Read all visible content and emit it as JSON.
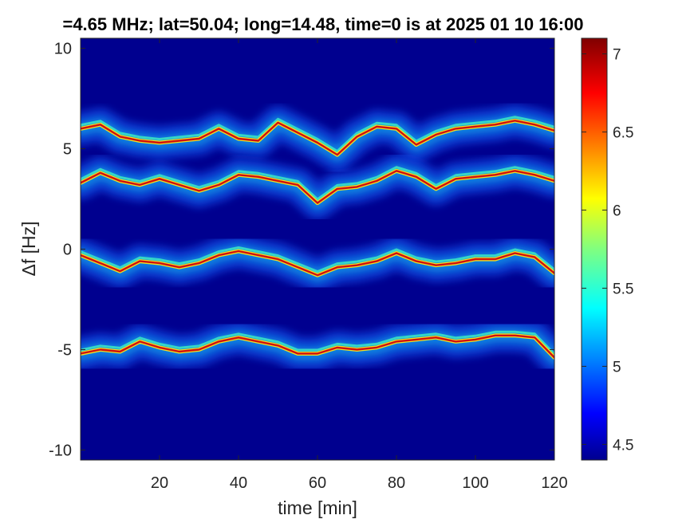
{
  "chart_data": {
    "type": "heatmap",
    "title": "=4.65 MHz;  lat=50.04; long=14.48, time=0 is at 2025 01 10 16:00",
    "xlabel": "time [min]",
    "ylabel": "Δf [Hz]",
    "xlim": [
      0,
      120
    ],
    "ylim": [
      -10.5,
      10.5
    ],
    "xticks": [
      20,
      40,
      60,
      80,
      100,
      120
    ],
    "xtick_labels": [
      "20",
      "40",
      "60",
      "80",
      "100",
      "120"
    ],
    "yticks": [
      10,
      5,
      0,
      -5,
      -10
    ],
    "ytick_labels": [
      "10",
      "5",
      "0",
      "-5",
      "-10"
    ],
    "colorbar": {
      "colormap": "jet",
      "range": [
        4.4,
        7.1
      ],
      "ticks": [
        7,
        6.5,
        6,
        5.5,
        5,
        4.5
      ],
      "tick_labels": [
        "7",
        "6.5",
        "6",
        "5.5",
        "5",
        "4.5"
      ]
    },
    "background_color": "#00008f",
    "traces": [
      {
        "name": "",
        "time": [
          0,
          5,
          10,
          15,
          20,
          25,
          30,
          35,
          40,
          45,
          50,
          55,
          60,
          65,
          70,
          75,
          80,
          85,
          90,
          95,
          100,
          105,
          110,
          115,
          120
        ],
        "df": [
          6.0,
          6.2,
          5.6,
          5.4,
          5.3,
          5.4,
          5.5,
          6.0,
          5.5,
          5.4,
          6.3,
          5.8,
          5.3,
          4.7,
          5.6,
          6.1,
          6.0,
          5.2,
          5.7,
          6.0,
          6.1,
          6.2,
          6.4,
          6.2,
          5.9
        ]
      },
      {
        "name": "",
        "time": [
          0,
          5,
          10,
          15,
          20,
          25,
          30,
          35,
          40,
          45,
          50,
          55,
          60,
          65,
          70,
          75,
          80,
          85,
          90,
          95,
          100,
          105,
          110,
          115,
          120
        ],
        "df": [
          3.3,
          3.8,
          3.4,
          3.2,
          3.5,
          3.2,
          2.9,
          3.2,
          3.7,
          3.6,
          3.4,
          3.2,
          2.3,
          3.0,
          3.1,
          3.4,
          3.9,
          3.6,
          3.0,
          3.5,
          3.6,
          3.7,
          3.9,
          3.7,
          3.4
        ]
      },
      {
        "name": "",
        "time": [
          0,
          5,
          10,
          15,
          20,
          25,
          30,
          35,
          40,
          45,
          50,
          55,
          60,
          65,
          70,
          75,
          80,
          85,
          90,
          95,
          100,
          105,
          110,
          115,
          120
        ],
        "df": [
          -0.3,
          -0.7,
          -1.1,
          -0.6,
          -0.7,
          -0.9,
          -0.7,
          -0.3,
          -0.1,
          -0.3,
          -0.5,
          -0.9,
          -1.3,
          -0.9,
          -0.8,
          -0.6,
          -0.2,
          -0.6,
          -0.8,
          -0.7,
          -0.5,
          -0.5,
          -0.2,
          -0.4,
          -1.2
        ]
      },
      {
        "name": "",
        "time": [
          0,
          5,
          10,
          15,
          20,
          25,
          30,
          35,
          40,
          45,
          50,
          55,
          60,
          65,
          70,
          75,
          80,
          85,
          90,
          95,
          100,
          105,
          110,
          115,
          120
        ],
        "df": [
          -5.2,
          -5.0,
          -5.1,
          -4.6,
          -4.9,
          -5.1,
          -5.0,
          -4.6,
          -4.4,
          -4.6,
          -4.8,
          -5.2,
          -5.2,
          -4.9,
          -5.0,
          -4.9,
          -4.6,
          -4.5,
          -4.4,
          -4.6,
          -4.5,
          -4.3,
          -4.3,
          -4.4,
          -5.4
        ]
      }
    ]
  }
}
